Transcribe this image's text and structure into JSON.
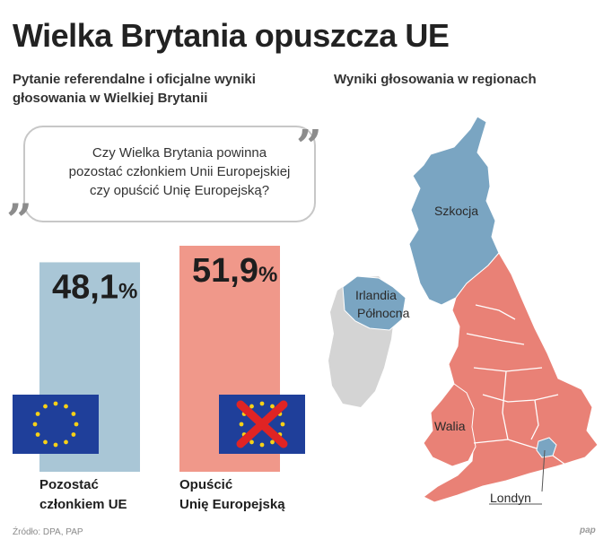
{
  "title": "Wielka Brytania opuszcza UE",
  "subtitle_left": "Pytanie referendalne i oficjalne wyniki głosowania w Wielkiej Brytanii",
  "subtitle_right": "Wyniki głosowania w regionach",
  "question_lines": [
    "Czy Wielka Brytania powinna",
    "pozostać członkiem Unii Europejskiej",
    "czy opuścić Unię Europejską?"
  ],
  "quote_open": "„",
  "quote_close": "”",
  "colors": {
    "remain": "#a9c6d6",
    "leave": "#f0988a",
    "remain_region": "#7aa5c2",
    "leave_region": "#e98176",
    "ireland": "#d4d4d4",
    "eu_flag": "#1f3f9a",
    "eu_star": "#f7d117",
    "cross": "#e02424"
  },
  "chart_data": {
    "type": "bar",
    "categories": [
      "Pozostać członkiem UE",
      "Opuścić Unię Europejską"
    ],
    "values": [
      48.1,
      51.9
    ],
    "value_labels": [
      "48,1",
      "51,9"
    ],
    "unit": "%",
    "ylim": [
      0,
      51.9
    ],
    "series_colors": [
      "#a9c6d6",
      "#f0988a"
    ],
    "icons": [
      "eu-flag-icon",
      "eu-flag-crossed-icon"
    ]
  },
  "labels": {
    "remain": [
      "Pozostać",
      "członkiem UE"
    ],
    "leave": [
      "Opuścić",
      "Unię Europejską"
    ]
  },
  "map": {
    "regions": {
      "scotland": "Szkocja",
      "northern_ireland": [
        "Irlandia",
        "Północna"
      ],
      "wales": "Walia",
      "london": "Londyn"
    },
    "results": {
      "scotland": "remain",
      "northern_ireland": "remain",
      "london": "remain",
      "wales": "leave",
      "england_rest": "leave"
    }
  },
  "source": "Źródło: DPA, PAP",
  "logo": "pap"
}
